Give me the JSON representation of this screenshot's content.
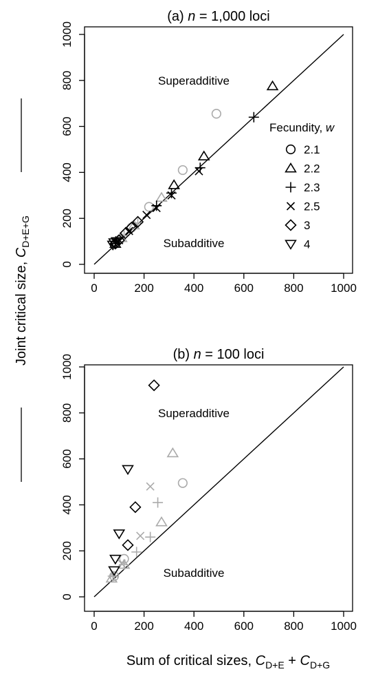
{
  "chart_data": [
    {
      "type": "scatter",
      "panel": "a",
      "title_prefix": "(a) ",
      "title_var": "n",
      "title_rest": " = 1,000 loci",
      "xlim": [
        0,
        1000
      ],
      "ylim": [
        0,
        1000
      ],
      "xticks": [
        "0",
        "200",
        "400",
        "600",
        "800",
        "1000"
      ],
      "yticks": [
        "0",
        "200",
        "400",
        "600",
        "800",
        "1000"
      ],
      "reference_line": "y = x",
      "regions": {
        "upper": "Superadditive",
        "lower": "Subadditive"
      },
      "grid": false,
      "legend_placement": "right",
      "series": [
        {
          "name": "2.1",
          "marker": "circle",
          "points": [
            {
              "x": 490,
              "y": 655,
              "color": "gray"
            },
            {
              "x": 355,
              "y": 410,
              "color": "gray"
            },
            {
              "x": 220,
              "y": 250,
              "color": "gray"
            },
            {
              "x": 150,
              "y": 160,
              "color": "gray"
            },
            {
              "x": 105,
              "y": 110,
              "color": "gray"
            },
            {
              "x": 85,
              "y": 90,
              "color": "gray"
            }
          ]
        },
        {
          "name": "2.2",
          "marker": "triangle-up",
          "points": [
            {
              "x": 715,
              "y": 775,
              "color": "black"
            },
            {
              "x": 440,
              "y": 470,
              "color": "black"
            },
            {
              "x": 320,
              "y": 345,
              "color": "black"
            },
            {
              "x": 270,
              "y": 290,
              "color": "gray"
            },
            {
              "x": 160,
              "y": 170,
              "color": "gray"
            },
            {
              "x": 110,
              "y": 115,
              "color": "gray"
            },
            {
              "x": 85,
              "y": 90,
              "color": "black"
            }
          ]
        },
        {
          "name": "2.3",
          "marker": "plus",
          "points": [
            {
              "x": 640,
              "y": 640,
              "color": "black"
            },
            {
              "x": 425,
              "y": 420,
              "color": "black"
            },
            {
              "x": 310,
              "y": 310,
              "color": "black"
            },
            {
              "x": 250,
              "y": 255,
              "color": "black"
            },
            {
              "x": 175,
              "y": 180,
              "color": "gray"
            },
            {
              "x": 120,
              "y": 125,
              "color": "gray"
            },
            {
              "x": 85,
              "y": 90,
              "color": "black"
            }
          ]
        },
        {
          "name": "2.5",
          "marker": "cross",
          "points": [
            {
              "x": 420,
              "y": 405,
              "color": "black"
            },
            {
              "x": 310,
              "y": 300,
              "color": "black"
            },
            {
              "x": 250,
              "y": 245,
              "color": "black"
            },
            {
              "x": 210,
              "y": 215,
              "color": "black"
            },
            {
              "x": 140,
              "y": 145,
              "color": "black"
            },
            {
              "x": 100,
              "y": 105,
              "color": "black"
            }
          ]
        },
        {
          "name": "3",
          "marker": "diamond",
          "points": [
            {
              "x": 175,
              "y": 185,
              "color": "black"
            },
            {
              "x": 150,
              "y": 160,
              "color": "black"
            },
            {
              "x": 125,
              "y": 135,
              "color": "black"
            },
            {
              "x": 100,
              "y": 105,
              "color": "black"
            },
            {
              "x": 85,
              "y": 90,
              "color": "black"
            }
          ]
        },
        {
          "name": "4",
          "marker": "triangle-down",
          "points": [
            {
              "x": 90,
              "y": 100,
              "color": "black"
            },
            {
              "x": 80,
              "y": 95,
              "color": "black"
            },
            {
              "x": 75,
              "y": 85,
              "color": "black"
            }
          ]
        }
      ]
    },
    {
      "type": "scatter",
      "panel": "b",
      "title_prefix": "(b) ",
      "title_var": "n",
      "title_rest": " = 100 loci",
      "xlim": [
        0,
        1000
      ],
      "ylim": [
        0,
        1000
      ],
      "xticks": [
        "0",
        "200",
        "400",
        "600",
        "800",
        "1000"
      ],
      "yticks": [
        "0",
        "200",
        "400",
        "600",
        "800",
        "1000"
      ],
      "reference_line": "y = x",
      "regions": {
        "upper": "Superadditive",
        "lower": "Subadditive"
      },
      "grid": false,
      "series": [
        {
          "name": "2.1",
          "marker": "circle",
          "points": [
            {
              "x": 355,
              "y": 495,
              "color": "gray"
            },
            {
              "x": 120,
              "y": 165,
              "color": "gray"
            },
            {
              "x": 80,
              "y": 90,
              "color": "gray"
            }
          ]
        },
        {
          "name": "2.2",
          "marker": "triangle-up",
          "points": [
            {
              "x": 315,
              "y": 625,
              "color": "gray"
            },
            {
              "x": 270,
              "y": 325,
              "color": "gray"
            },
            {
              "x": 120,
              "y": 140,
              "color": "gray"
            },
            {
              "x": 70,
              "y": 80,
              "color": "gray"
            }
          ]
        },
        {
          "name": "2.3",
          "marker": "plus",
          "points": [
            {
              "x": 255,
              "y": 410,
              "color": "gray"
            },
            {
              "x": 225,
              "y": 260,
              "color": "gray"
            },
            {
              "x": 170,
              "y": 195,
              "color": "gray"
            },
            {
              "x": 120,
              "y": 140,
              "color": "gray"
            },
            {
              "x": 75,
              "y": 90,
              "color": "gray"
            }
          ]
        },
        {
          "name": "2.5",
          "marker": "cross",
          "points": [
            {
              "x": 225,
              "y": 480,
              "color": "gray"
            },
            {
              "x": 185,
              "y": 265,
              "color": "gray"
            },
            {
              "x": 110,
              "y": 145,
              "color": "gray"
            },
            {
              "x": 80,
              "y": 100,
              "color": "gray"
            }
          ]
        },
        {
          "name": "3",
          "marker": "diamond",
          "points": [
            {
              "x": 240,
              "y": 920,
              "color": "black"
            },
            {
              "x": 165,
              "y": 390,
              "color": "black"
            },
            {
              "x": 135,
              "y": 225,
              "color": "black"
            }
          ]
        },
        {
          "name": "4",
          "marker": "triangle-down",
          "points": [
            {
              "x": 135,
              "y": 555,
              "color": "black"
            },
            {
              "x": 100,
              "y": 275,
              "color": "black"
            },
            {
              "x": 85,
              "y": 165,
              "color": "black"
            },
            {
              "x": 80,
              "y": 115,
              "color": "black"
            }
          ]
        }
      ]
    }
  ],
  "legend": {
    "title": "Fecundity, ",
    "title_var": "w",
    "entries": [
      {
        "label": "2.1",
        "marker": "circle"
      },
      {
        "label": "2.2",
        "marker": "triangle-up"
      },
      {
        "label": "2.3",
        "marker": "plus"
      },
      {
        "label": "2.5",
        "marker": "cross"
      },
      {
        "label": "3",
        "marker": "diamond"
      },
      {
        "label": "4",
        "marker": "triangle-down"
      }
    ]
  },
  "axes": {
    "ylabel_text": "Joint critical size, ",
    "ylabel_var": "C",
    "ylabel_sub": "D+E+G",
    "xlabel_text": "Sum of critical sizes, ",
    "xlabel_var1": "C",
    "xlabel_sub1": "D+E",
    "xlabel_plus": " + ",
    "xlabel_var2": "C",
    "xlabel_sub2": "D+G"
  },
  "colors": {
    "black": "#000000",
    "gray": "#aaaaaa"
  }
}
